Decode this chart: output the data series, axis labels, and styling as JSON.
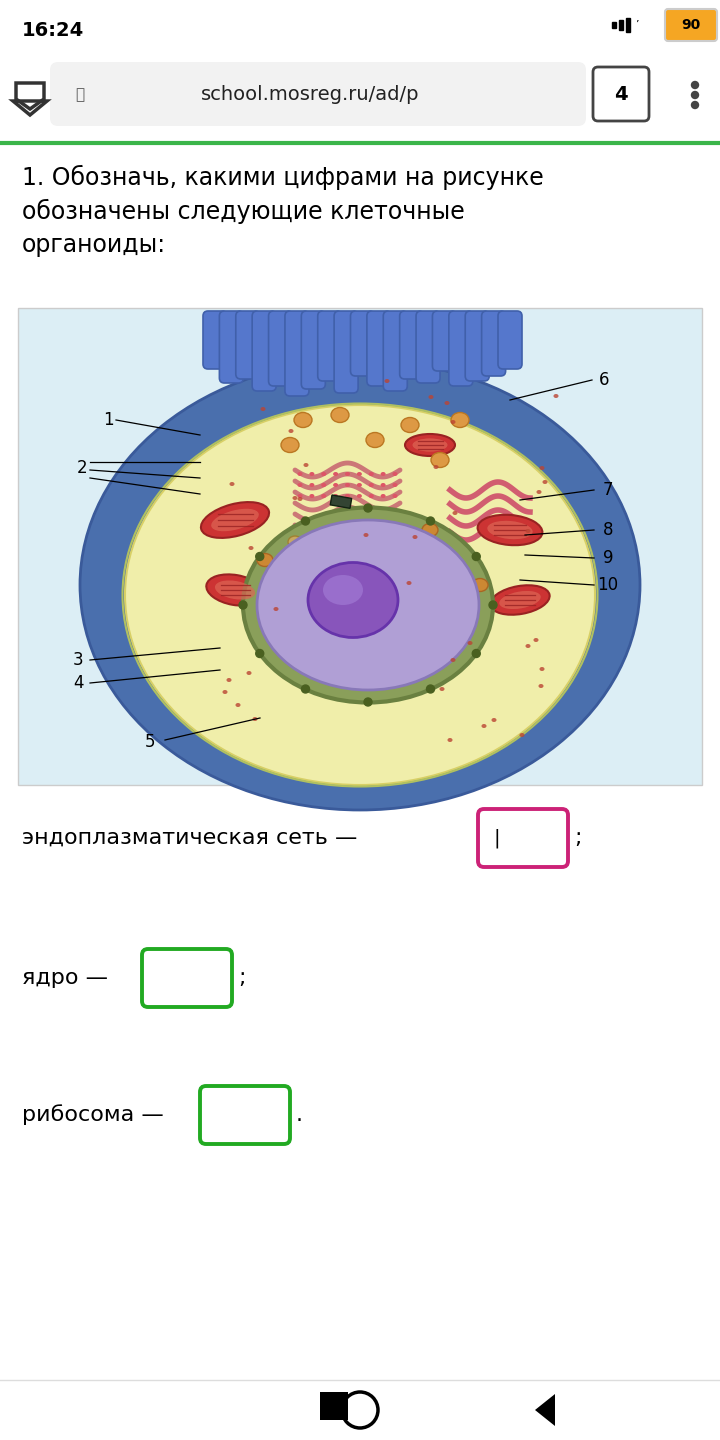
{
  "white_bg": "#ffffff",
  "light_blue_bg": "#e8f4f8",
  "title_text": "1. Обозначь, какими цифрами на рисунке\nобозначены следующие клеточные\nорганоиды:",
  "title_fontsize": 17,
  "status_bar_time": "16:24",
  "url_text": "school.mosreg.ru/ad/p",
  "tab_num": "4",
  "label1_text": "эндоплазматическая сеть —",
  "label2_text": "ядро —",
  "label3_text": "рибосома —",
  "box1_color": "#cc2277",
  "box2_color": "#22aa22",
  "box3_color": "#22aa22",
  "semicolon1": ";",
  "semicolon2": ";",
  "period3": ".",
  "cursor_in_box1": "|"
}
